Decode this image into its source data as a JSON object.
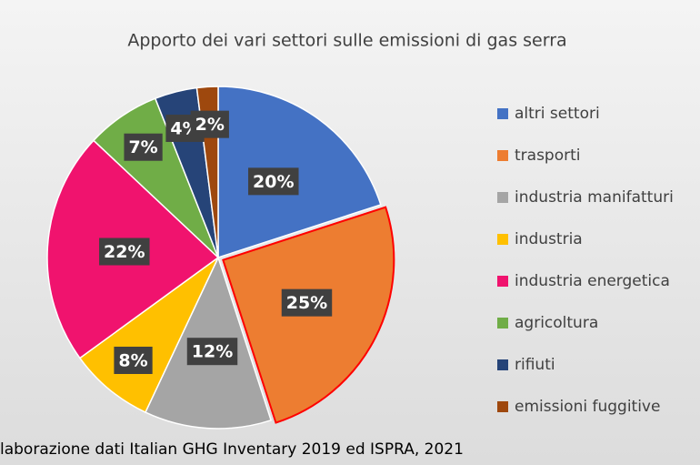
{
  "chart_data": {
    "type": "pie",
    "title": "Apporto dei vari settori sulle emissioni di gas serra",
    "categories": [
      "altri settori",
      "trasporti",
      "industria manifatturi",
      "industria",
      "industria energetica",
      "agricoltura",
      "rifiuti",
      "emissioni fuggitive"
    ],
    "values": [
      20,
      25,
      12,
      8,
      22,
      7,
      4,
      2
    ],
    "value_labels": [
      "20%",
      "25%",
      "12%",
      "8%",
      "22%",
      "7%",
      "4%",
      "2%"
    ],
    "colors": [
      "#4472c4",
      "#ed7d31",
      "#a5a5a5",
      "#ffc000",
      "#f0136e",
      "#70ad47",
      "#264478",
      "#9e480e"
    ],
    "legend": "right",
    "source": "laborazione dati Italian GHG Inventary 2019 ed ISPRA, 2021"
  }
}
